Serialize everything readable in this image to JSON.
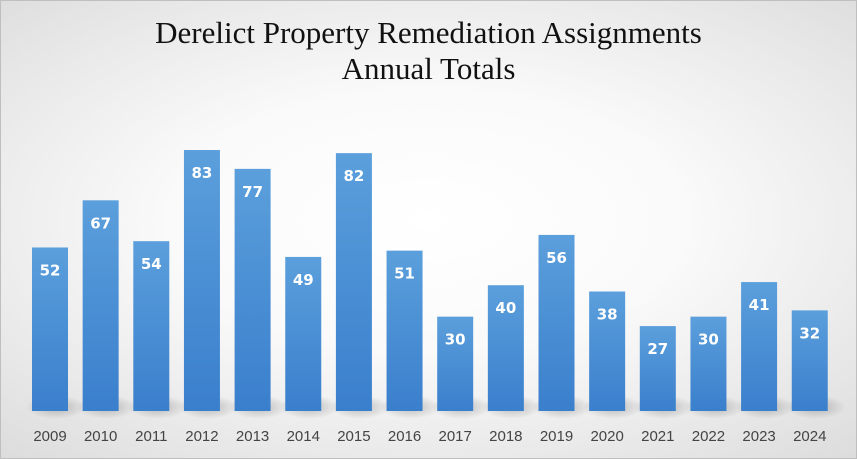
{
  "chart_data": {
    "type": "bar",
    "title": "Derelict Property Remediation Assignments",
    "subtitle": "Annual Totals",
    "categories": [
      "2009",
      "2010",
      "2011",
      "2012",
      "2013",
      "2014",
      "2015",
      "2016",
      "2017",
      "2018",
      "2019",
      "2020",
      "2021",
      "2022",
      "2023",
      "2024"
    ],
    "values": [
      52,
      67,
      54,
      83,
      77,
      49,
      82,
      51,
      30,
      40,
      56,
      38,
      27,
      30,
      41,
      32
    ],
    "xlabel": "",
    "ylabel": "",
    "ylim": [
      0,
      83
    ],
    "grid": false,
    "legend": "none",
    "data_labels": true,
    "colors": {
      "bar_top": "#5b9fdc",
      "bar_bottom": "#3a7fcc"
    }
  }
}
